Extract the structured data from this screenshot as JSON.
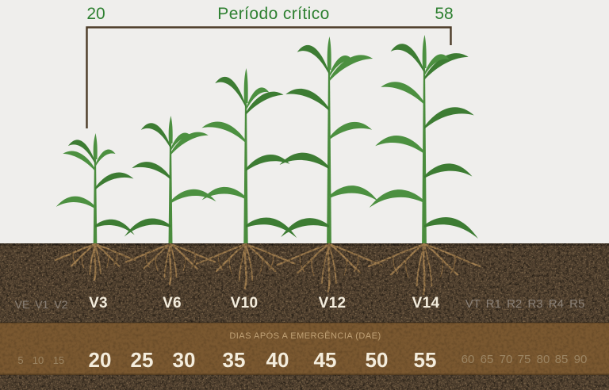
{
  "header": {
    "start_day": "20",
    "title": "Período crítico",
    "end_day": "58"
  },
  "stages": {
    "faded_left": "VE V1 V2",
    "main": [
      "V3",
      "V6",
      "V10",
      "V12",
      "V14"
    ],
    "faded_right": "VT R1 R2 R3 R4 R5"
  },
  "timeline": {
    "axis_label": "DIAS APÓS A EMERGÊNCIA (DAE)",
    "faded_left": [
      "5",
      "10",
      "15"
    ],
    "main": [
      "20",
      "25",
      "30",
      "35",
      "40",
      "45",
      "50",
      "55"
    ],
    "faded_right": [
      "60",
      "65",
      "70",
      "75",
      "80",
      "85",
      "90"
    ]
  },
  "colors": {
    "sky": "#efeeec",
    "accent_green": "#2e8031",
    "bracket_brown": "#4b3a26",
    "leaf_green": "#4c9040",
    "leaf_green_dark": "#3d7c33",
    "stem_green": "#4a8c3d",
    "soil_dark": "#50402f",
    "band_brown": "#7a5830",
    "root_tan": "#9d7a4c",
    "root_tan_dark": "#8b6a41",
    "text_bright": "#f4eddd",
    "text_faded_soil": "#8a8076",
    "text_faded_band": "#9b8462",
    "band_label": "#bfa074"
  }
}
